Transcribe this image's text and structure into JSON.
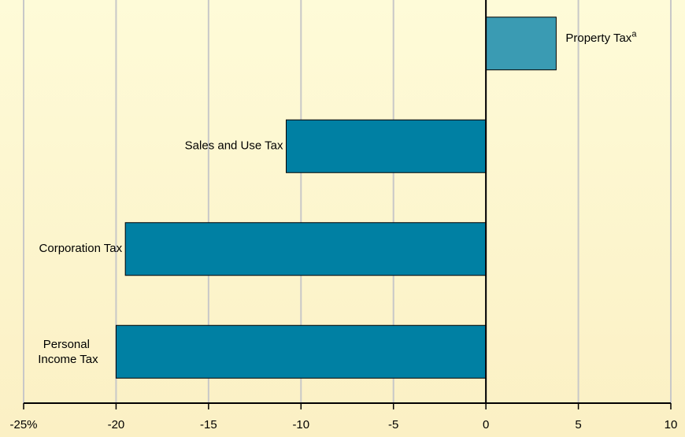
{
  "chart_data": {
    "type": "bar",
    "orientation": "horizontal",
    "categories": [
      "Property Tax",
      "Sales and Use Tax",
      "Corporation Tax",
      "Personal Income Tax"
    ],
    "category_superscripts": {
      "0": "a"
    },
    "values": [
      3.8,
      -10.8,
      -19.5,
      -20.0
    ],
    "colors": [
      "#3a9bb3",
      "#0080a3",
      "#0080a3",
      "#0080a3"
    ],
    "xlim": [
      -25,
      10
    ],
    "xticks": [
      {
        "value": -25,
        "label": "-25%"
      },
      -20,
      -15,
      -10,
      -5,
      0,
      5,
      10
    ],
    "grid": true
  }
}
